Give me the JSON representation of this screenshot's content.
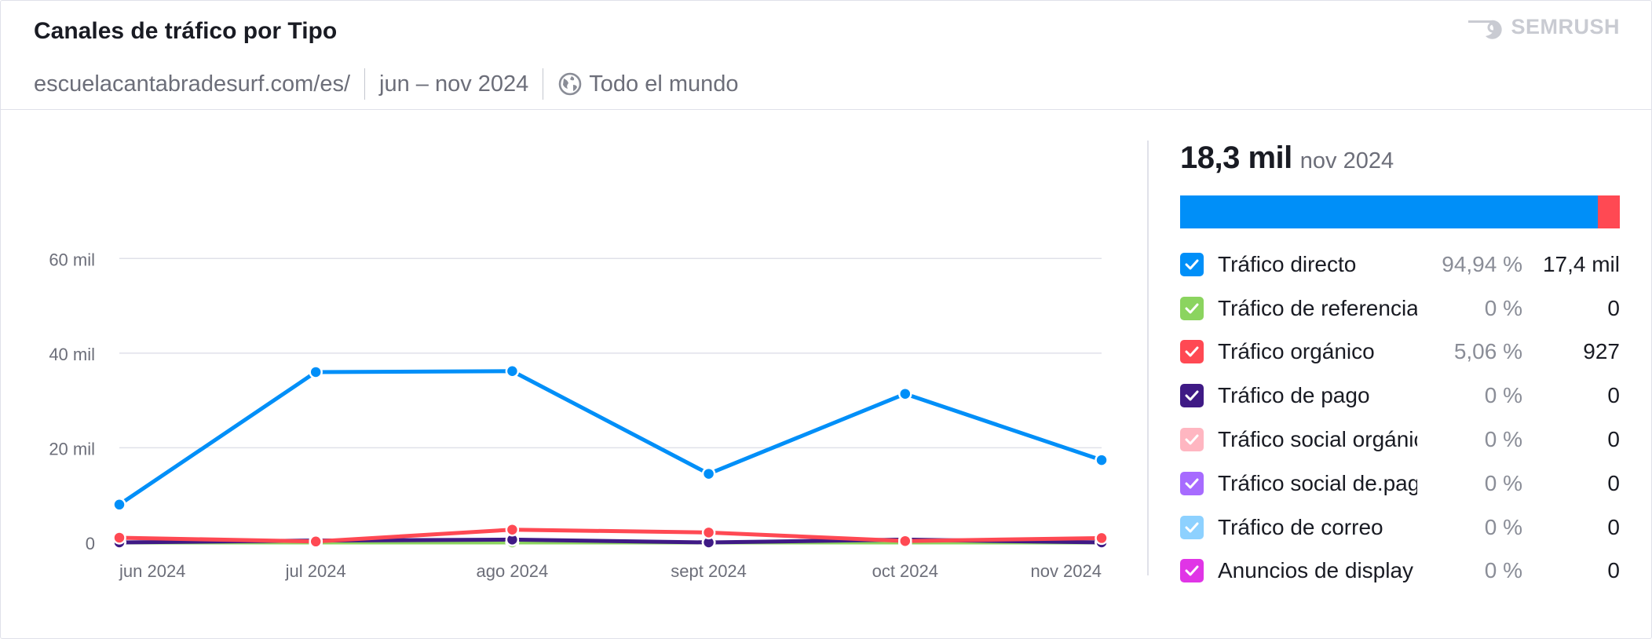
{
  "header": {
    "title": "Canales de tráfico por Tipo",
    "domain": "escuelacantabradesurf.com/es/",
    "period": "jun – nov 2024",
    "region": "Todo el mundo",
    "brand": "SEMRUSH",
    "globe_icon": "globe-icon",
    "brand_icon": "semrush-flame-icon"
  },
  "summary": {
    "total": "18,3 mil",
    "period": "nov 2024",
    "stack": [
      {
        "name": "Tráfico directo",
        "fraction": 0.9494,
        "color": "#008ff8"
      },
      {
        "name": "Tráfico orgánico",
        "fraction": 0.0506,
        "color": "#ff4953"
      }
    ]
  },
  "legend": [
    {
      "name": "Tráfico directo",
      "pct": "94,94 %",
      "value": "17,4 mil",
      "color": "#008ff8",
      "checked": true
    },
    {
      "name": "Tráfico de referencia",
      "pct": "0 %",
      "value": "0",
      "color": "#8bd45f",
      "checked": true
    },
    {
      "name": "Tráfico orgánico",
      "pct": "5,06 %",
      "value": "927",
      "color": "#ff4953",
      "checked": true
    },
    {
      "name": "Tráfico de pago",
      "pct": "0 %",
      "value": "0",
      "color": "#3f1a85",
      "checked": true
    },
    {
      "name": "Tráfico social orgánico",
      "pct": "0 %",
      "value": "0",
      "color": "#ffb6c1",
      "checked": true
    },
    {
      "name": "Tráfico social de.pago",
      "pct": "0 %",
      "value": "0",
      "color": "#a76bff",
      "checked": true
    },
    {
      "name": "Tráfico de correo",
      "pct": "0 %",
      "value": "0",
      "color": "#8dd1ff",
      "checked": true
    },
    {
      "name": "Anuncios de display",
      "pct": "0 %",
      "value": "0",
      "color": "#e035e6",
      "checked": true
    }
  ],
  "chart_data": {
    "type": "line",
    "title": "Canales de tráfico por Tipo",
    "categories": [
      "jun 2024",
      "jul 2024",
      "ago 2024",
      "sept 2024",
      "oct 2024",
      "nov 2024"
    ],
    "y_ticks": [
      {
        "value": 0,
        "label": "0"
      },
      {
        "value": 20000,
        "label": "20 mil"
      },
      {
        "value": 40000,
        "label": "40 mil"
      },
      {
        "value": 60000,
        "label": "60 mil"
      }
    ],
    "ylim": [
      0,
      70000
    ],
    "grid": true,
    "series": [
      {
        "name": "Tráfico directo",
        "color": "#008ff8",
        "values": [
          8000,
          36000,
          36200,
          14500,
          31400,
          17400
        ]
      },
      {
        "name": "Tráfico orgánico",
        "color": "#ff4953",
        "values": [
          1000,
          200,
          2700,
          2100,
          300,
          927
        ]
      },
      {
        "name": "Tráfico de pago",
        "color": "#3f1a85",
        "values": [
          0,
          400,
          600,
          0,
          600,
          0
        ]
      },
      {
        "name": "Tráfico de referencia",
        "color": "#8bd45f",
        "values": [
          0,
          0,
          0,
          0,
          0,
          0
        ]
      },
      {
        "name": "Tráfico social orgánico",
        "color": "#ffb6c1",
        "values": [
          0,
          0,
          0,
          0,
          0,
          0
        ]
      },
      {
        "name": "Tráfico social de.pago",
        "color": "#a76bff",
        "values": [
          0,
          0,
          0,
          0,
          0,
          0
        ]
      },
      {
        "name": "Tráfico de correo",
        "color": "#8dd1ff",
        "values": [
          0,
          0,
          0,
          0,
          0,
          0
        ]
      },
      {
        "name": "Anuncios de display",
        "color": "#e035e6",
        "values": [
          0,
          0,
          0,
          0,
          0,
          0
        ]
      }
    ]
  }
}
